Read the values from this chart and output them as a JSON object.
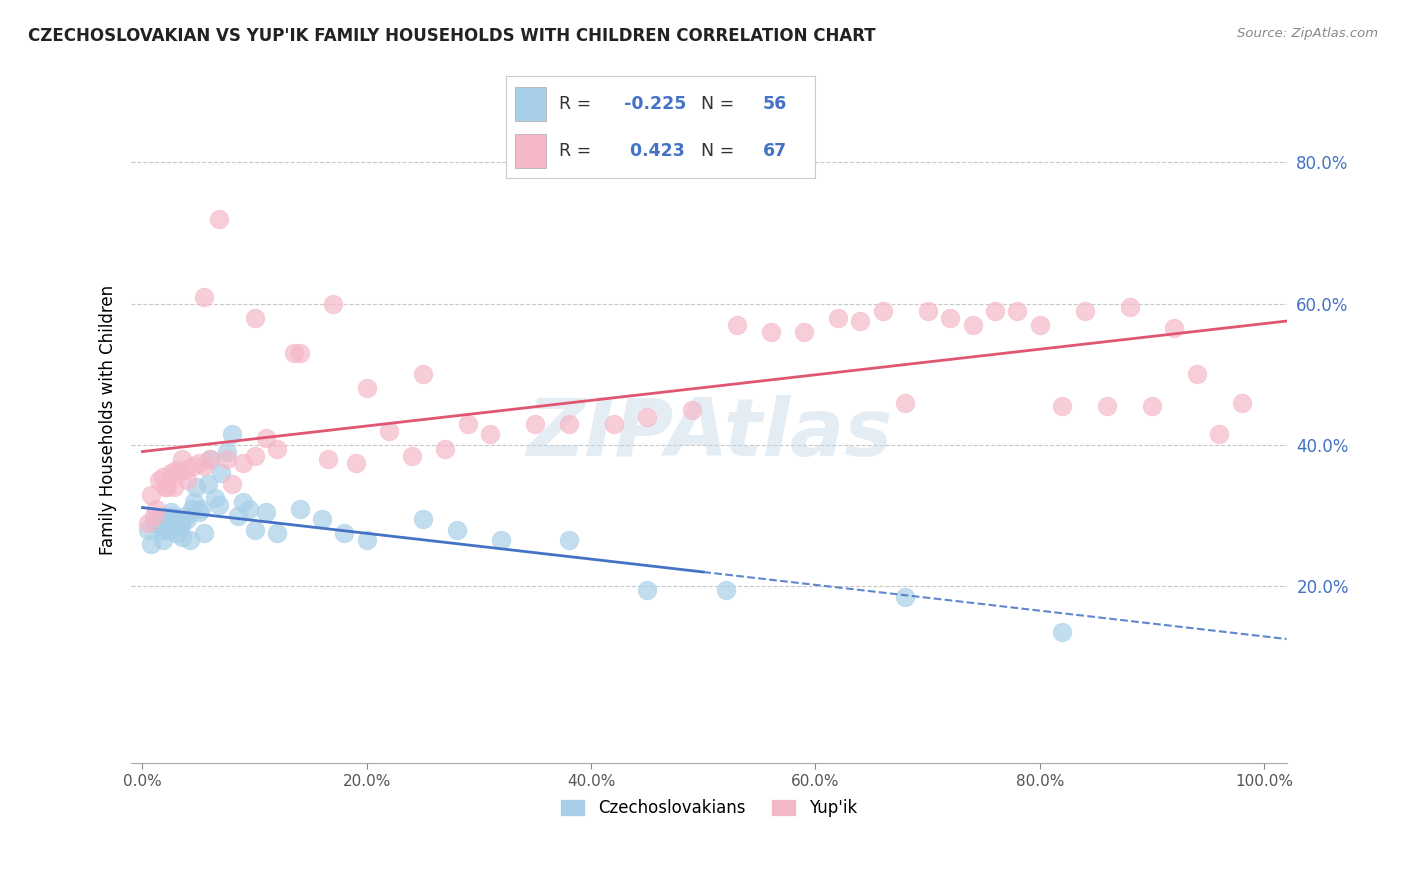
{
  "title": "CZECHOSLOVAKIAN VS YUP'IK FAMILY HOUSEHOLDS WITH CHILDREN CORRELATION CHART",
  "source": "Source: ZipAtlas.com",
  "ylabel": "Family Households with Children",
  "xlabel": "",
  "xlim": [
    -0.01,
    1.02
  ],
  "ylim": [
    -0.05,
    0.92
  ],
  "ytick_labels": [
    "20.0%",
    "40.0%",
    "60.0%",
    "80.0%"
  ],
  "ytick_vals": [
    0.2,
    0.4,
    0.6,
    0.8
  ],
  "xtick_labels": [
    "0.0%",
    "20.0%",
    "40.0%",
    "60.0%",
    "80.0%",
    "100.0%"
  ],
  "xtick_vals": [
    0.0,
    0.2,
    0.4,
    0.6,
    0.8,
    1.0
  ],
  "legend_label1": "Czechoslovakians",
  "legend_label2": "Yup'ik",
  "R1": -0.225,
  "N1": 56,
  "R2": 0.423,
  "N2": 67,
  "color_blue": "#a8cfe8",
  "color_pink": "#f5b8c8",
  "line_blue": "#4472c4",
  "line_pink": "#e05570",
  "tick_color": "#4472c4",
  "watermark": "ZIPAtlas",
  "background_color": "#ffffff",
  "grid_color": "#c8c8c8",
  "blue_x": [
    0.005,
    0.008,
    0.01,
    0.012,
    0.015,
    0.015,
    0.018,
    0.018,
    0.02,
    0.022,
    0.022,
    0.024,
    0.025,
    0.025,
    0.028,
    0.028,
    0.03,
    0.03,
    0.032,
    0.034,
    0.034,
    0.035,
    0.038,
    0.04,
    0.042,
    0.044,
    0.046,
    0.048,
    0.05,
    0.052,
    0.055,
    0.058,
    0.06,
    0.065,
    0.068,
    0.07,
    0.075,
    0.08,
    0.085,
    0.09,
    0.095,
    0.1,
    0.11,
    0.12,
    0.14,
    0.16,
    0.18,
    0.2,
    0.25,
    0.28,
    0.32,
    0.38,
    0.45,
    0.52,
    0.68,
    0.82
  ],
  "blue_y": [
    0.28,
    0.26,
    0.29,
    0.295,
    0.295,
    0.29,
    0.265,
    0.28,
    0.285,
    0.29,
    0.28,
    0.295,
    0.3,
    0.305,
    0.285,
    0.295,
    0.275,
    0.285,
    0.29,
    0.29,
    0.285,
    0.27,
    0.3,
    0.295,
    0.265,
    0.31,
    0.32,
    0.34,
    0.305,
    0.31,
    0.275,
    0.345,
    0.38,
    0.325,
    0.315,
    0.36,
    0.39,
    0.415,
    0.3,
    0.32,
    0.31,
    0.28,
    0.305,
    0.275,
    0.31,
    0.295,
    0.275,
    0.265,
    0.295,
    0.28,
    0.265,
    0.265,
    0.195,
    0.195,
    0.185,
    0.135
  ],
  "pink_x": [
    0.005,
    0.008,
    0.01,
    0.012,
    0.015,
    0.018,
    0.02,
    0.022,
    0.025,
    0.028,
    0.03,
    0.032,
    0.035,
    0.038,
    0.04,
    0.045,
    0.05,
    0.055,
    0.06,
    0.068,
    0.075,
    0.08,
    0.09,
    0.1,
    0.11,
    0.12,
    0.14,
    0.165,
    0.19,
    0.22,
    0.24,
    0.27,
    0.31,
    0.35,
    0.38,
    0.42,
    0.45,
    0.49,
    0.53,
    0.56,
    0.59,
    0.62,
    0.64,
    0.66,
    0.68,
    0.7,
    0.72,
    0.74,
    0.76,
    0.78,
    0.8,
    0.82,
    0.84,
    0.86,
    0.88,
    0.9,
    0.92,
    0.94,
    0.96,
    0.98,
    0.055,
    0.1,
    0.135,
    0.17,
    0.2,
    0.25,
    0.29
  ],
  "pink_y": [
    0.29,
    0.33,
    0.3,
    0.31,
    0.35,
    0.355,
    0.34,
    0.34,
    0.36,
    0.34,
    0.365,
    0.36,
    0.38,
    0.365,
    0.35,
    0.37,
    0.375,
    0.37,
    0.38,
    0.72,
    0.38,
    0.345,
    0.375,
    0.385,
    0.41,
    0.395,
    0.53,
    0.38,
    0.375,
    0.42,
    0.385,
    0.395,
    0.415,
    0.43,
    0.43,
    0.43,
    0.44,
    0.45,
    0.57,
    0.56,
    0.56,
    0.58,
    0.575,
    0.59,
    0.46,
    0.59,
    0.58,
    0.57,
    0.59,
    0.59,
    0.57,
    0.455,
    0.59,
    0.455,
    0.595,
    0.455,
    0.565,
    0.5,
    0.415,
    0.46,
    0.61,
    0.58,
    0.53,
    0.6,
    0.48,
    0.5,
    0.43
  ]
}
